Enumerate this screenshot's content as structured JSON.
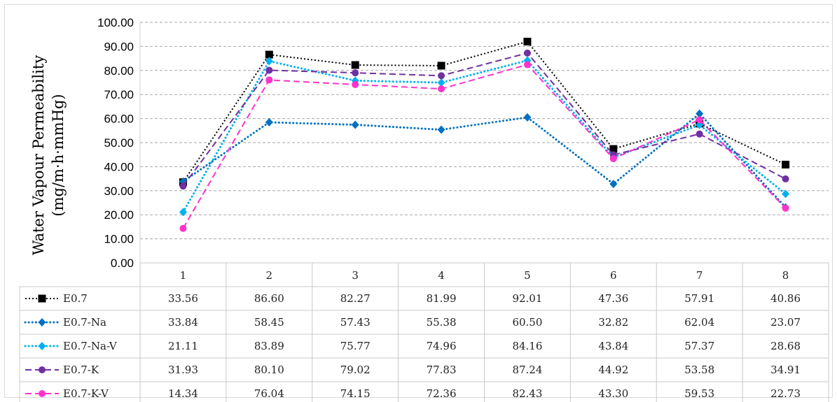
{
  "chart_data": {
    "type": "line",
    "ylabel_line1": "Water Vapour Permeability",
    "ylabel_line2": "(mg/m·h·mmHg)",
    "ylim": [
      0,
      100
    ],
    "yticks": [
      "0.00",
      "10.00",
      "20.00",
      "30.00",
      "40.00",
      "50.00",
      "60.00",
      "70.00",
      "80.00",
      "90.00",
      "100.00"
    ],
    "grid": true,
    "legend": "data-table",
    "categories": [
      "1",
      "2",
      "3",
      "4",
      "5",
      "6",
      "7",
      "8"
    ],
    "series": [
      {
        "name": "E0.7",
        "color": "#000000",
        "dash": "dot",
        "marker": "square",
        "values": [
          33.56,
          86.6,
          82.27,
          81.99,
          92.01,
          47.36,
          57.91,
          40.86
        ],
        "labels": [
          "33.56",
          "86.60",
          "82.27",
          "81.99",
          "92.01",
          "47.36",
          "57.91",
          "40.86"
        ]
      },
      {
        "name": "E0.7-Na",
        "color": "#0070c0",
        "dash": "round-dot",
        "marker": "diamond",
        "values": [
          33.84,
          58.45,
          57.43,
          55.38,
          60.5,
          32.82,
          62.04,
          23.07
        ],
        "labels": [
          "33.84",
          "58.45",
          "57.43",
          "55.38",
          "60.50",
          "32.82",
          "62.04",
          "23.07"
        ]
      },
      {
        "name": "E0.7-Na-V",
        "color": "#00b0f0",
        "dash": "round-dot",
        "marker": "diamond",
        "values": [
          21.11,
          83.89,
          75.77,
          74.96,
          84.16,
          43.84,
          57.37,
          28.68
        ],
        "labels": [
          "21.11",
          "83.89",
          "75.77",
          "74.96",
          "84.16",
          "43.84",
          "57.37",
          "28.68"
        ]
      },
      {
        "name": "E0.7-K",
        "color": "#7030a0",
        "dash": "dash",
        "marker": "circle",
        "values": [
          31.93,
          80.1,
          79.02,
          77.83,
          87.24,
          44.92,
          53.58,
          34.91
        ],
        "labels": [
          "31.93",
          "80.10",
          "79.02",
          "77.83",
          "87.24",
          "44.92",
          "53.58",
          "34.91"
        ]
      },
      {
        "name": "E0.7-K-V",
        "color": "#ff33cc",
        "dash": "dash",
        "marker": "circle",
        "values": [
          14.34,
          76.04,
          74.15,
          72.36,
          82.43,
          43.3,
          59.53,
          22.73
        ],
        "labels": [
          "14.34",
          "76.04",
          "74.15",
          "72.36",
          "82.43",
          "43.30",
          "59.53",
          "22.73"
        ]
      }
    ]
  }
}
